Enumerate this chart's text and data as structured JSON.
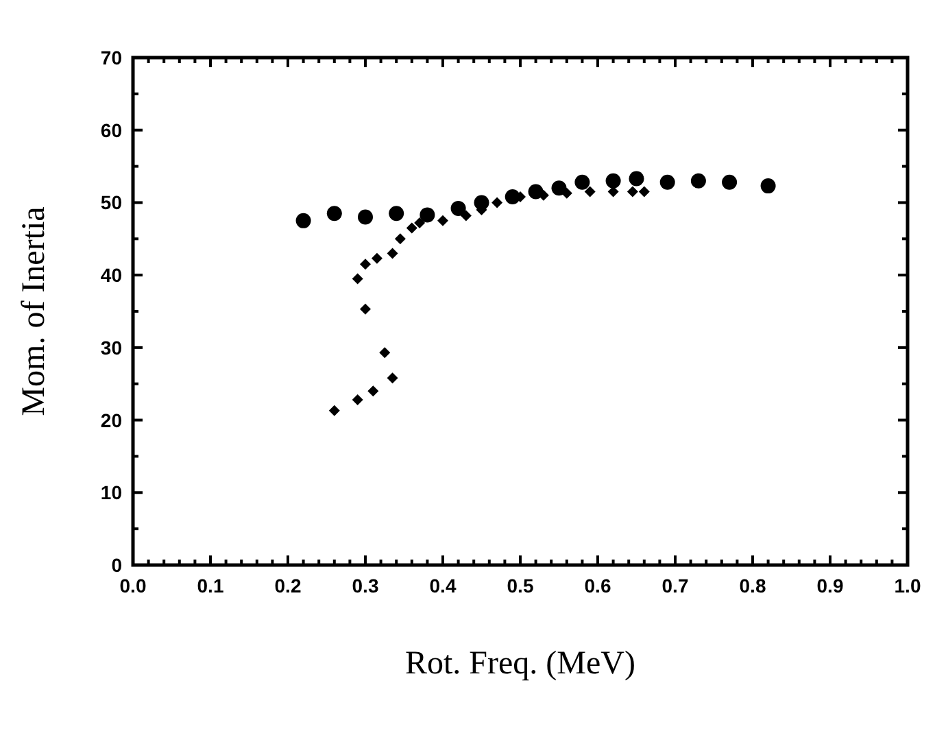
{
  "chart_data": {
    "type": "scatter",
    "xlabel": "Rot. Freq. (MeV)",
    "ylabel": "Mom. of Inertia",
    "xlim": [
      0,
      1
    ],
    "ylim": [
      0,
      70
    ],
    "xticks": [
      {
        "value": 0,
        "label": "0.0"
      },
      0.1,
      0.2,
      0.3,
      0.4,
      0.5,
      0.6,
      0.7,
      0.8,
      0.9,
      {
        "value": 1,
        "label": "1.0"
      }
    ],
    "yticks": [
      0,
      10,
      20,
      30,
      40,
      50,
      60,
      70
    ],
    "grid": false,
    "series": [
      {
        "color": "#000000",
        "marker": "circle",
        "x": [
          0.22,
          0.26,
          0.3,
          0.34,
          0.38,
          0.42,
          0.45,
          0.49,
          0.52,
          0.55,
          0.58,
          0.62,
          0.65,
          0.69,
          0.73,
          0.77,
          0.82
        ],
        "values": [
          47.5,
          48.5,
          48,
          48.5,
          48.3,
          49.2,
          50,
          50.8,
          51.5,
          52,
          52.8,
          53,
          53.3,
          52.8,
          53,
          52.8,
          52.3
        ]
      },
      {
        "color": "#000000",
        "marker": "diamond",
        "x": [
          0.26,
          0.29,
          0.31,
          0.335,
          0.325,
          0.3,
          0.29,
          0.3,
          0.315,
          0.335,
          0.345,
          0.36,
          0.37,
          0.4,
          0.43,
          0.45,
          0.47,
          0.5,
          0.53,
          0.56,
          0.59,
          0.62,
          0.645,
          0.66
        ],
        "values": [
          21.3,
          22.8,
          24,
          25.8,
          29.3,
          35.3,
          39.5,
          41.5,
          42.3,
          43,
          45,
          46.5,
          47.2,
          47.5,
          48.2,
          49,
          50,
          50.8,
          51,
          51.3,
          51.5,
          51.5,
          51.5,
          51.5
        ]
      }
    ]
  }
}
